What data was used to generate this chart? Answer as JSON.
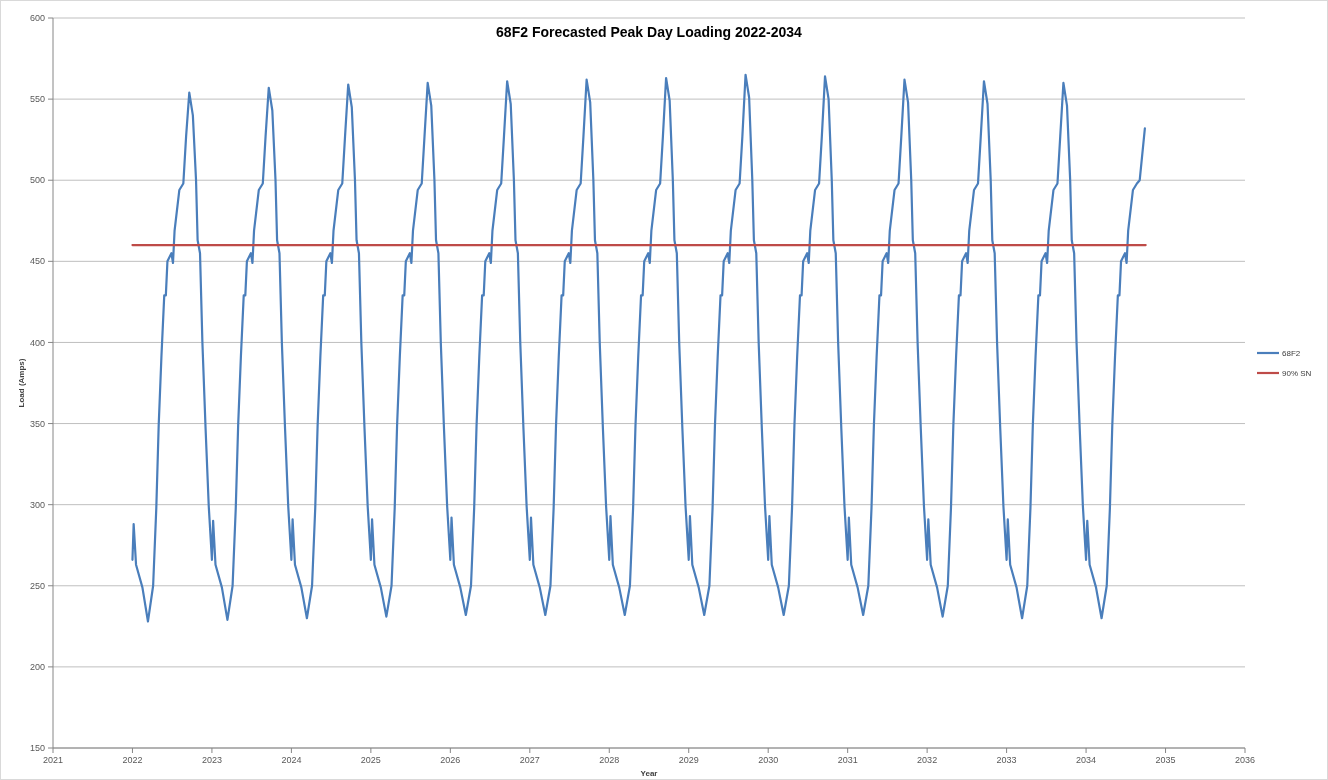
{
  "chart_data": {
    "type": "line",
    "title": "68F2 Forecasted  Peak Day Loading 2022-2034",
    "xlabel": "Year",
    "ylabel": "Load (Amps)",
    "xlim": [
      2021,
      2036
    ],
    "xticks": [
      2021,
      2022,
      2023,
      2024,
      2025,
      2026,
      2027,
      2028,
      2029,
      2030,
      2031,
      2032,
      2033,
      2034,
      2035,
      2036
    ],
    "ylim": [
      150,
      600
    ],
    "yticks": [
      150,
      200,
      250,
      300,
      350,
      400,
      450,
      500,
      550,
      600
    ],
    "grid": "y",
    "legend": "right",
    "marker": "none",
    "line_style": "solid",
    "series": [
      {
        "name": "68F2",
        "color": "#4a7ebb",
        "x": [
          2022,
          2022.015,
          2022.045,
          2022.125,
          2022.195,
          2022.26,
          2022.3,
          2022.33,
          2022.365,
          2022.4,
          2022.42,
          2022.44,
          2022.49,
          2022.51,
          2022.53,
          2022.59,
          2022.64,
          2022.675,
          2022.715,
          2022.76,
          2022.8,
          2022.82,
          2022.85,
          2022.88,
          2022.92,
          2022.96,
          2023,
          2023.015,
          2023.045,
          2023.125,
          2023.195,
          2023.26,
          2023.3,
          2023.33,
          2023.365,
          2023.4,
          2023.42,
          2023.44,
          2023.49,
          2023.51,
          2023.53,
          2023.59,
          2023.64,
          2023.675,
          2023.715,
          2023.76,
          2023.8,
          2023.82,
          2023.85,
          2023.88,
          2023.92,
          2023.96,
          2024,
          2024.015,
          2024.045,
          2024.125,
          2024.195,
          2024.26,
          2024.3,
          2024.33,
          2024.365,
          2024.4,
          2024.42,
          2024.44,
          2024.49,
          2024.51,
          2024.53,
          2024.59,
          2024.64,
          2024.675,
          2024.715,
          2024.76,
          2024.8,
          2024.82,
          2024.85,
          2024.88,
          2024.92,
          2024.96,
          2025,
          2025.015,
          2025.045,
          2025.125,
          2025.195,
          2025.26,
          2025.3,
          2025.33,
          2025.365,
          2025.4,
          2025.42,
          2025.44,
          2025.49,
          2025.51,
          2025.53,
          2025.59,
          2025.64,
          2025.675,
          2025.715,
          2025.76,
          2025.8,
          2025.82,
          2025.85,
          2025.88,
          2025.92,
          2025.96,
          2026,
          2026.015,
          2026.045,
          2026.125,
          2026.195,
          2026.26,
          2026.3,
          2026.33,
          2026.365,
          2026.4,
          2026.42,
          2026.44,
          2026.49,
          2026.51,
          2026.53,
          2026.59,
          2026.64,
          2026.675,
          2026.715,
          2026.76,
          2026.8,
          2026.82,
          2026.85,
          2026.88,
          2026.92,
          2026.96,
          2027,
          2027.015,
          2027.045,
          2027.125,
          2027.195,
          2027.26,
          2027.3,
          2027.33,
          2027.365,
          2027.4,
          2027.42,
          2027.44,
          2027.49,
          2027.51,
          2027.53,
          2027.59,
          2027.64,
          2027.675,
          2027.715,
          2027.76,
          2027.8,
          2027.82,
          2027.85,
          2027.88,
          2027.92,
          2027.96,
          2028,
          2028.015,
          2028.045,
          2028.125,
          2028.195,
          2028.26,
          2028.3,
          2028.33,
          2028.365,
          2028.4,
          2028.42,
          2028.44,
          2028.49,
          2028.51,
          2028.53,
          2028.59,
          2028.64,
          2028.675,
          2028.715,
          2028.76,
          2028.8,
          2028.82,
          2028.85,
          2028.88,
          2028.92,
          2028.96,
          2029,
          2029.015,
          2029.045,
          2029.125,
          2029.195,
          2029.26,
          2029.3,
          2029.33,
          2029.365,
          2029.4,
          2029.42,
          2029.44,
          2029.49,
          2029.51,
          2029.53,
          2029.59,
          2029.64,
          2029.675,
          2029.715,
          2029.76,
          2029.8,
          2029.82,
          2029.85,
          2029.88,
          2029.92,
          2029.96,
          2030,
          2030.015,
          2030.045,
          2030.125,
          2030.195,
          2030.26,
          2030.3,
          2030.33,
          2030.365,
          2030.4,
          2030.42,
          2030.44,
          2030.49,
          2030.51,
          2030.53,
          2030.59,
          2030.64,
          2030.675,
          2030.715,
          2030.76,
          2030.8,
          2030.82,
          2030.85,
          2030.88,
          2030.92,
          2030.96,
          2031,
          2031.015,
          2031.045,
          2031.125,
          2031.195,
          2031.26,
          2031.3,
          2031.33,
          2031.365,
          2031.4,
          2031.42,
          2031.44,
          2031.49,
          2031.51,
          2031.53,
          2031.59,
          2031.64,
          2031.675,
          2031.715,
          2031.76,
          2031.8,
          2031.82,
          2031.85,
          2031.88,
          2031.92,
          2031.96,
          2032,
          2032.015,
          2032.045,
          2032.125,
          2032.195,
          2032.26,
          2032.3,
          2032.33,
          2032.365,
          2032.4,
          2032.42,
          2032.44,
          2032.49,
          2032.51,
          2032.53,
          2032.59,
          2032.64,
          2032.675,
          2032.715,
          2032.76,
          2032.8,
          2032.82,
          2032.85,
          2032.88,
          2032.92,
          2032.96,
          2033,
          2033.015,
          2033.045,
          2033.125,
          2033.195,
          2033.26,
          2033.3,
          2033.33,
          2033.365,
          2033.4,
          2033.42,
          2033.44,
          2033.49,
          2033.51,
          2033.53,
          2033.59,
          2033.64,
          2033.675,
          2033.715,
          2033.76,
          2033.8,
          2033.82,
          2033.85,
          2033.88,
          2033.92,
          2033.96,
          2034,
          2034.015,
          2034.045,
          2034.125,
          2034.195,
          2034.26,
          2034.3,
          2034.33,
          2034.365,
          2034.4,
          2034.42,
          2034.44,
          2034.49,
          2034.51,
          2034.53,
          2034.59,
          2034.64,
          2034.675,
          2034.74
        ],
        "values": [
          266,
          288,
          263,
          249,
          228,
          250,
          298,
          349,
          392,
          429,
          429,
          450,
          455,
          449,
          469,
          494,
          498,
          527,
          554,
          540,
          500,
          463,
          455,
          400,
          347,
          299,
          266,
          290,
          263,
          249,
          229,
          250,
          298,
          349,
          392,
          429,
          429,
          450,
          455,
          449,
          469,
          494,
          498,
          527,
          557,
          543,
          500,
          463,
          455,
          400,
          347,
          299,
          266,
          291,
          263,
          249,
          230,
          250,
          298,
          349,
          392,
          429,
          429,
          450,
          455,
          449,
          469,
          494,
          498,
          527,
          559,
          545,
          500,
          463,
          455,
          400,
          347,
          299,
          266,
          291,
          263,
          249,
          231,
          250,
          298,
          349,
          392,
          429,
          429,
          450,
          455,
          449,
          469,
          494,
          498,
          527,
          560,
          546,
          500,
          463,
          455,
          400,
          347,
          299,
          266,
          292,
          263,
          249,
          232,
          250,
          298,
          349,
          392,
          429,
          429,
          450,
          455,
          449,
          469,
          494,
          498,
          527,
          561,
          547,
          500,
          463,
          455,
          400,
          347,
          299,
          266,
          292,
          263,
          249,
          232,
          250,
          298,
          349,
          392,
          429,
          429,
          450,
          455,
          449,
          469,
          494,
          498,
          527,
          562,
          548,
          500,
          463,
          455,
          400,
          347,
          299,
          266,
          293,
          263,
          249,
          232,
          250,
          298,
          349,
          392,
          429,
          429,
          450,
          455,
          449,
          469,
          494,
          498,
          527,
          563,
          549,
          500,
          463,
          455,
          400,
          347,
          299,
          266,
          293,
          263,
          249,
          232,
          250,
          298,
          349,
          392,
          429,
          429,
          450,
          455,
          449,
          469,
          494,
          498,
          527,
          565,
          551,
          500,
          463,
          455,
          400,
          347,
          299,
          266,
          293,
          263,
          249,
          232,
          250,
          298,
          349,
          392,
          429,
          429,
          450,
          455,
          449,
          469,
          494,
          498,
          527,
          564,
          550,
          500,
          463,
          455,
          400,
          347,
          299,
          266,
          292,
          263,
          249,
          232,
          250,
          298,
          349,
          392,
          429,
          429,
          450,
          455,
          449,
          469,
          494,
          498,
          527,
          562,
          548,
          500,
          463,
          455,
          400,
          347,
          299,
          266,
          291,
          263,
          249,
          231,
          250,
          298,
          349,
          392,
          429,
          429,
          450,
          455,
          449,
          469,
          494,
          498,
          527,
          561,
          547,
          500,
          463,
          455,
          400,
          347,
          299,
          266,
          291,
          263,
          249,
          230,
          250,
          298,
          349,
          392,
          429,
          429,
          450,
          455,
          449,
          469,
          494,
          498,
          527,
          560,
          546,
          500,
          463,
          455,
          400,
          347,
          299,
          266,
          290,
          263,
          249,
          230,
          250,
          298,
          349,
          392,
          429,
          429,
          450,
          455,
          449,
          469,
          494,
          498,
          500,
          532
        ]
      },
      {
        "name": "90% SN",
        "color": "#be4b48",
        "x": [
          2022,
          2034.75
        ],
        "values": [
          460,
          460
        ]
      }
    ]
  }
}
